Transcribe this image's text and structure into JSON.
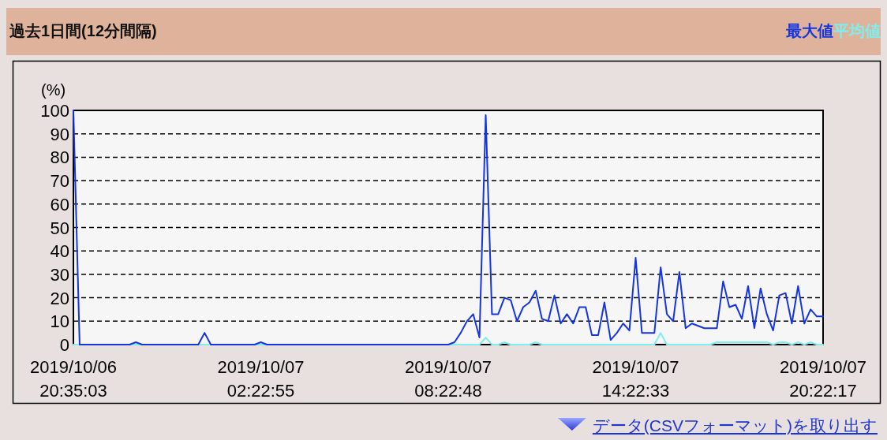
{
  "chart_data": {
    "type": "line",
    "title": "過去1日間(12分間隔)",
    "ylabel": "(%)",
    "categories": [
      "2019/10/06\n20:35:03",
      null,
      null,
      null,
      null,
      null,
      null,
      null,
      null,
      null,
      null,
      null,
      null,
      null,
      null,
      null,
      null,
      null,
      null,
      null,
      null,
      null,
      null,
      null,
      null,
      null,
      null,
      null,
      null,
      null,
      "2019/10/07\n02:22:55",
      null,
      null,
      null,
      null,
      null,
      null,
      null,
      null,
      null,
      null,
      null,
      null,
      null,
      null,
      null,
      null,
      null,
      null,
      null,
      null,
      null,
      null,
      null,
      null,
      null,
      null,
      null,
      null,
      null,
      "2019/10/07\n08:22:48",
      null,
      null,
      null,
      null,
      null,
      null,
      null,
      null,
      null,
      null,
      null,
      null,
      null,
      null,
      null,
      null,
      null,
      null,
      null,
      null,
      null,
      null,
      null,
      null,
      null,
      null,
      null,
      null,
      null,
      "2019/10/07\n14:22:33",
      null,
      null,
      null,
      null,
      null,
      null,
      null,
      null,
      null,
      null,
      null,
      null,
      null,
      null,
      null,
      null,
      null,
      null,
      null,
      null,
      null,
      null,
      null,
      null,
      null,
      null,
      null,
      null,
      null,
      "2019/10/07\n20:22:17"
    ],
    "series": [
      {
        "name": "最大値",
        "color": "#1535e0",
        "values": [
          100,
          0,
          0,
          0,
          0,
          0,
          0,
          0,
          0,
          0,
          1,
          0,
          0,
          0,
          0,
          0,
          0,
          0,
          0,
          0,
          0,
          5,
          0,
          0,
          0,
          0,
          0,
          0,
          0,
          0,
          1,
          0,
          0,
          0,
          0,
          0,
          0,
          0,
          0,
          0,
          0,
          0,
          0,
          0,
          0,
          0,
          0,
          0,
          0,
          0,
          0,
          0,
          0,
          0,
          0,
          0,
          0,
          0,
          0,
          0,
          0,
          1,
          5,
          10,
          13,
          3,
          98,
          13,
          13,
          20,
          19,
          10,
          16,
          18,
          23,
          11,
          10,
          21,
          9,
          13,
          9,
          16,
          16,
          4,
          4,
          18,
          2,
          5,
          9,
          6,
          37,
          5,
          5,
          5,
          33,
          13,
          10,
          31,
          7,
          9,
          8,
          7,
          7,
          7,
          27,
          16,
          17,
          11,
          25,
          7,
          24,
          13,
          6,
          21,
          22,
          9,
          25,
          9,
          15,
          12,
          12
        ]
      },
      {
        "name": "平均値",
        "color": "#7feeee",
        "values": [
          0,
          0,
          0,
          0,
          0,
          0,
          0,
          0,
          0,
          0,
          0,
          0,
          0,
          0,
          0,
          0,
          0,
          0,
          0,
          0,
          0,
          0,
          0,
          0,
          0,
          0,
          0,
          0,
          0,
          0,
          0,
          0,
          0,
          0,
          0,
          0,
          0,
          0,
          0,
          0,
          0,
          0,
          0,
          0,
          0,
          0,
          0,
          0,
          0,
          0,
          0,
          0,
          0,
          0,
          0,
          0,
          0,
          0,
          0,
          0,
          0,
          0,
          0,
          0,
          0,
          0,
          3,
          0,
          0,
          1,
          0,
          0,
          0,
          0,
          1,
          0,
          0,
          0,
          0,
          0,
          0,
          0,
          0,
          0,
          0,
          0,
          0,
          0,
          0,
          0,
          0,
          0,
          0,
          0,
          5,
          0,
          0,
          0,
          0,
          0,
          0,
          0,
          0,
          1,
          1,
          1,
          1,
          1,
          1,
          1,
          1,
          1,
          0,
          1,
          1,
          0,
          1,
          0,
          1,
          0,
          0
        ]
      }
    ],
    "ylim": [
      0,
      100
    ],
    "yticks": [
      0,
      10,
      20,
      30,
      40,
      50,
      60,
      70,
      80,
      90,
      100
    ],
    "grid": "y",
    "legend": "top right",
    "annotations": [
      "データ(CSVフォーマット)を取り出す"
    ]
  }
}
